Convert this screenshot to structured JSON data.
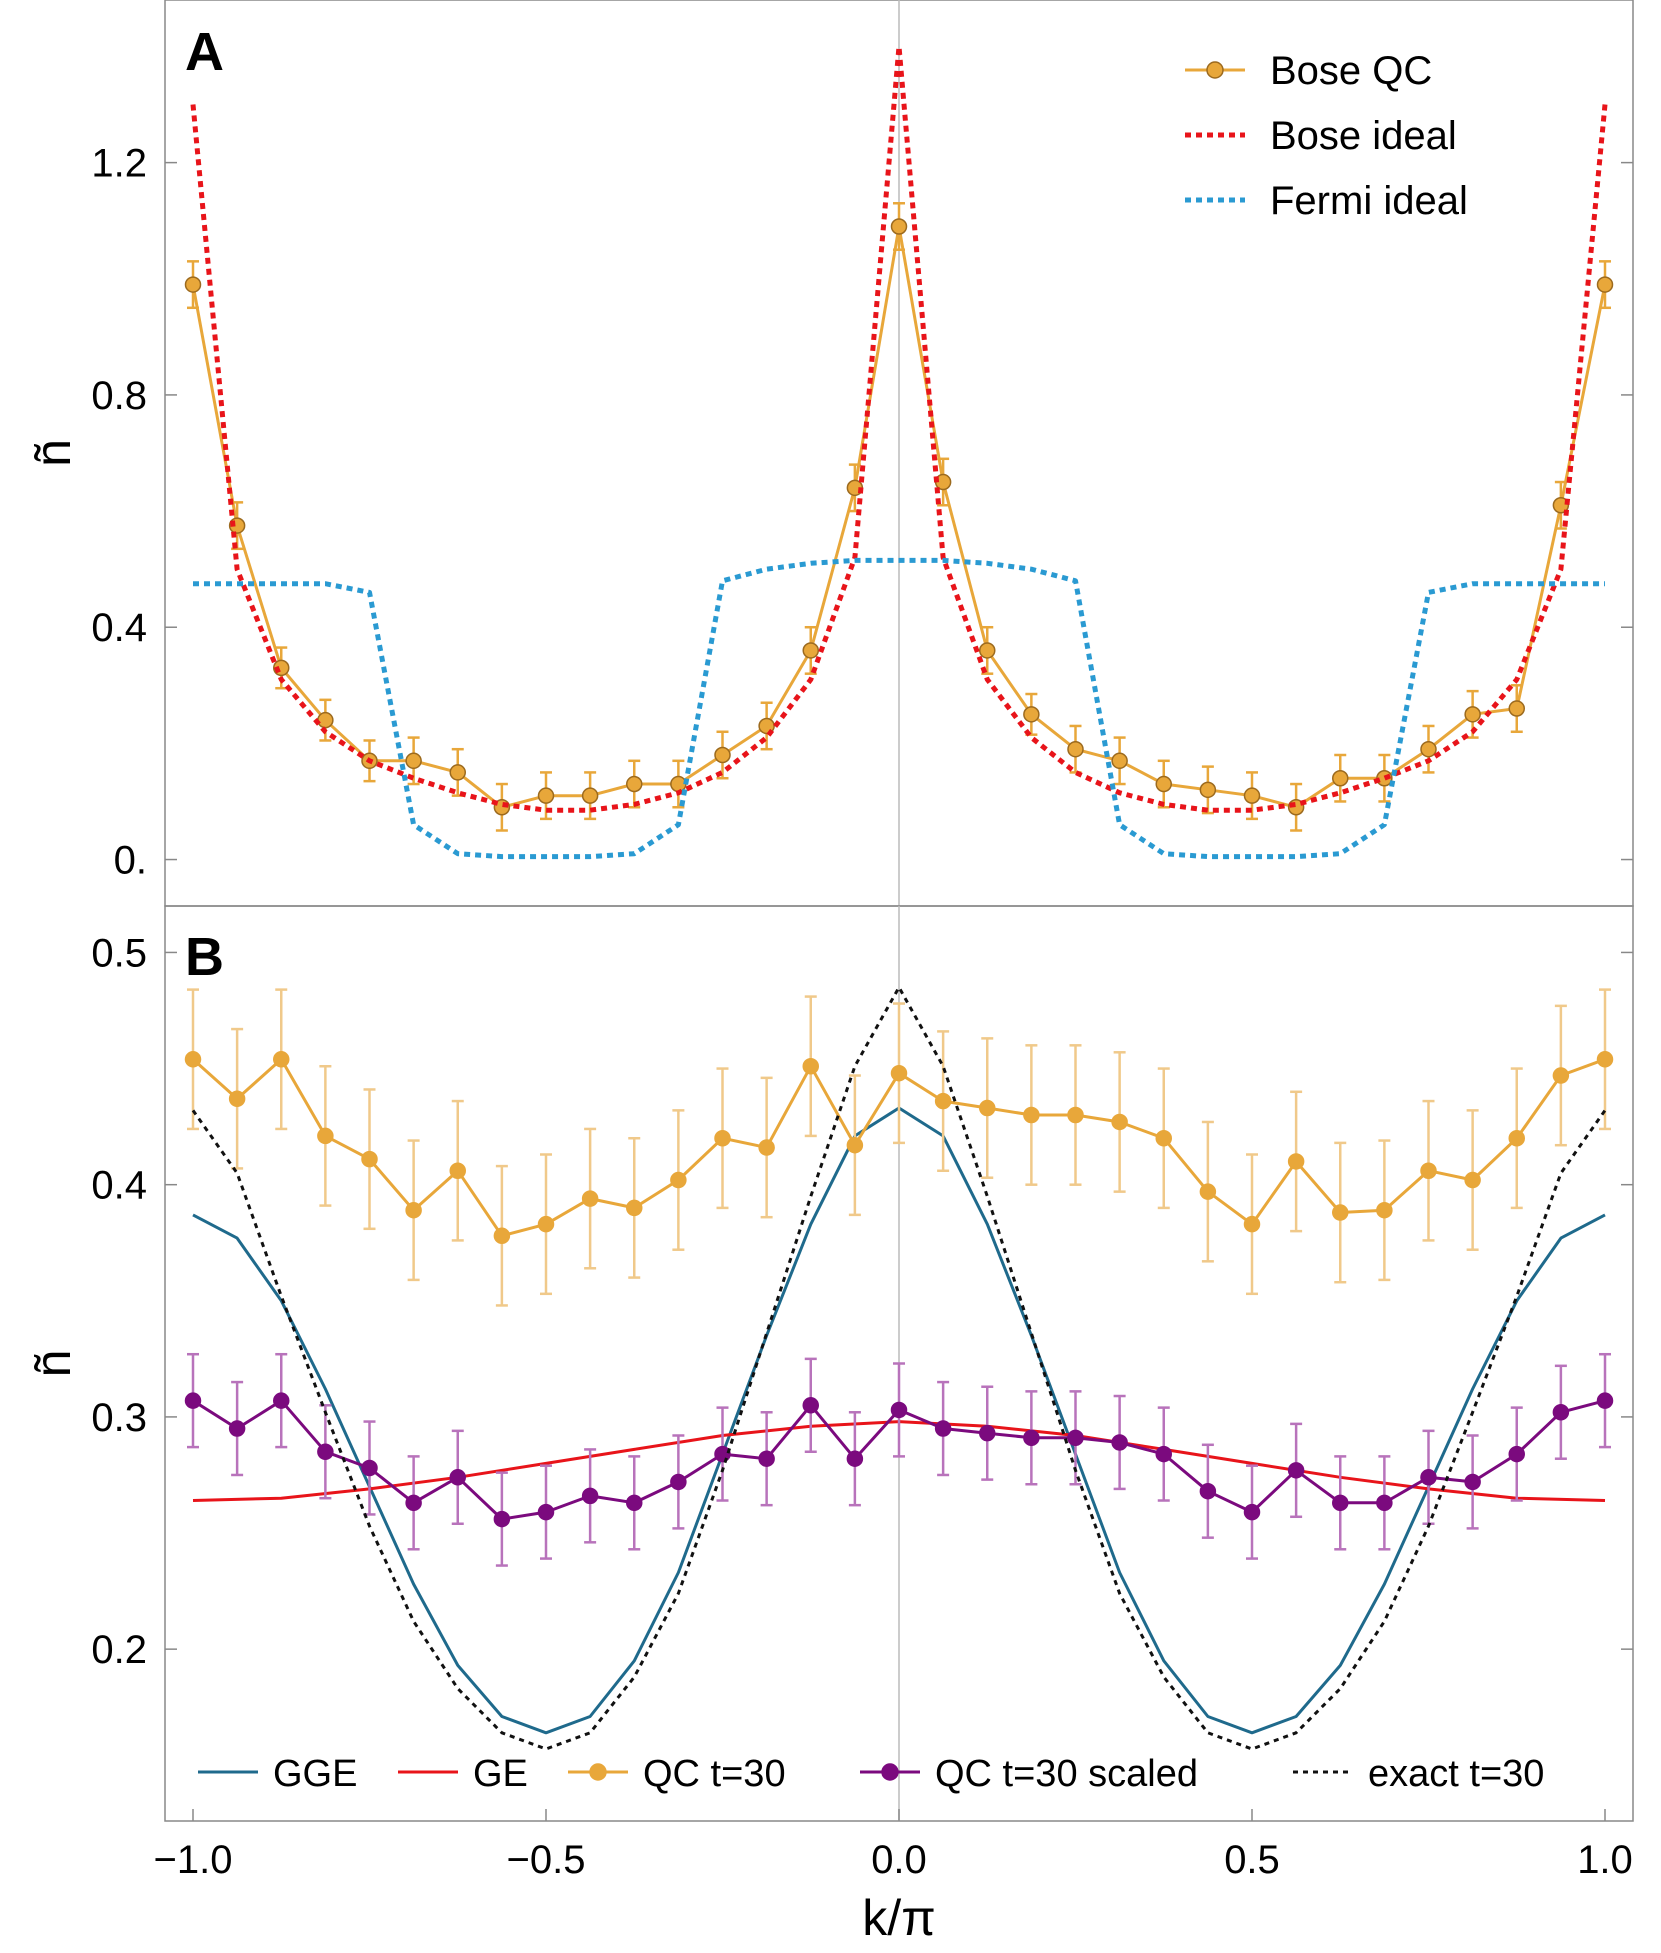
{
  "colors": {
    "bose_qc": "#E8A73A",
    "bose_qc_marker_stroke": "#9C6A1E",
    "bose_ideal": "#E8141A",
    "fermi_ideal": "#2A9AD2",
    "gge": "#1F6A8C",
    "ge": "#E8141A",
    "qc_scaled": "#7B0A7E",
    "exact": "#111111",
    "frame": "#888888",
    "zero_line": "#BBBBBB"
  },
  "chart_data": [
    {
      "panel": "A",
      "type": "line",
      "panel_label": "A",
      "xlabel": "k/π",
      "ylabel": "ñ",
      "xlim": [
        -1.0,
        1.0
      ],
      "ylim": [
        -0.08,
        1.48
      ],
      "yticks": [
        0.0,
        0.4,
        0.8,
        1.2
      ],
      "ytick_labels": [
        "0.",
        "0.4",
        "0.8",
        "1.2"
      ],
      "legend_position": "top-right",
      "legend": [
        "Bose QC",
        "Bose ideal",
        "Fermi ideal"
      ],
      "series": [
        {
          "name": "Bose QC",
          "style": "line-markers-errorbars",
          "x": [
            -1.0,
            -0.9375,
            -0.875,
            -0.8125,
            -0.75,
            -0.6875,
            -0.625,
            -0.5625,
            -0.5,
            -0.4375,
            -0.375,
            -0.3125,
            -0.25,
            -0.1875,
            -0.125,
            -0.0625,
            0.0,
            0.0625,
            0.125,
            0.1875,
            0.25,
            0.3125,
            0.375,
            0.4375,
            0.5,
            0.5625,
            0.625,
            0.6875,
            0.75,
            0.8125,
            0.875,
            0.9375,
            1.0
          ],
          "values": [
            0.99,
            0.575,
            0.33,
            0.24,
            0.17,
            0.17,
            0.15,
            0.09,
            0.11,
            0.11,
            0.13,
            0.13,
            0.18,
            0.23,
            0.36,
            0.64,
            1.09,
            0.65,
            0.36,
            0.25,
            0.19,
            0.17,
            0.13,
            0.12,
            0.11,
            0.09,
            0.14,
            0.14,
            0.19,
            0.25,
            0.26,
            0.61,
            0.99
          ],
          "errors": [
            0.04,
            0.04,
            0.035,
            0.035,
            0.035,
            0.04,
            0.04,
            0.04,
            0.04,
            0.04,
            0.04,
            0.04,
            0.04,
            0.04,
            0.04,
            0.04,
            0.04,
            0.04,
            0.04,
            0.035,
            0.04,
            0.04,
            0.04,
            0.04,
            0.04,
            0.04,
            0.04,
            0.04,
            0.04,
            0.04,
            0.04,
            0.04,
            0.04
          ]
        },
        {
          "name": "Bose ideal",
          "style": "dotted",
          "x": [
            -1.0,
            -0.9375,
            -0.875,
            -0.8125,
            -0.75,
            -0.6875,
            -0.625,
            -0.5625,
            -0.5,
            -0.4375,
            -0.375,
            -0.3125,
            -0.25,
            -0.1875,
            -0.125,
            -0.0625,
            0.0,
            0.0625,
            0.125,
            0.1875,
            0.25,
            0.3125,
            0.375,
            0.4375,
            0.5,
            0.5625,
            0.625,
            0.6875,
            0.75,
            0.8125,
            0.875,
            0.9375,
            1.0
          ],
          "values": [
            1.3,
            0.5,
            0.31,
            0.22,
            0.17,
            0.14,
            0.115,
            0.095,
            0.085,
            0.085,
            0.095,
            0.115,
            0.15,
            0.21,
            0.31,
            0.52,
            1.4,
            0.52,
            0.31,
            0.21,
            0.15,
            0.115,
            0.095,
            0.085,
            0.085,
            0.095,
            0.115,
            0.14,
            0.17,
            0.22,
            0.31,
            0.5,
            1.3
          ]
        },
        {
          "name": "Fermi ideal",
          "style": "dotted",
          "x": [
            -1.0,
            -0.9375,
            -0.875,
            -0.8125,
            -0.75,
            -0.6875,
            -0.625,
            -0.5625,
            -0.5,
            -0.4375,
            -0.375,
            -0.3125,
            -0.25,
            -0.1875,
            -0.125,
            -0.0625,
            0.0,
            0.0625,
            0.125,
            0.1875,
            0.25,
            0.3125,
            0.375,
            0.4375,
            0.5,
            0.5625,
            0.625,
            0.6875,
            0.75,
            0.8125,
            0.875,
            0.9375,
            1.0
          ],
          "values": [
            0.475,
            0.475,
            0.475,
            0.475,
            0.46,
            0.06,
            0.01,
            0.005,
            0.005,
            0.005,
            0.01,
            0.06,
            0.48,
            0.5,
            0.51,
            0.515,
            0.515,
            0.515,
            0.51,
            0.5,
            0.48,
            0.06,
            0.01,
            0.005,
            0.005,
            0.005,
            0.01,
            0.06,
            0.46,
            0.475,
            0.475,
            0.475,
            0.475
          ]
        }
      ]
    },
    {
      "panel": "B",
      "type": "line",
      "panel_label": "B",
      "xlabel": "k/π",
      "ylabel": "ñ",
      "xlim": [
        -1.0,
        1.0
      ],
      "ylim": [
        0.126,
        0.52
      ],
      "xticks": [
        -1.0,
        -0.5,
        0.0,
        0.5,
        1.0
      ],
      "xtick_labels": [
        "−1.0",
        "−0.5",
        "0.0",
        "0.5",
        "1.0"
      ],
      "yticks": [
        0.2,
        0.3,
        0.4,
        0.5
      ],
      "ytick_labels": [
        "0.2",
        "0.3",
        "0.4",
        "0.5"
      ],
      "legend_position": "bottom",
      "legend": [
        "GGE",
        "GE",
        "QC t=30",
        "QC t=30 scaled",
        "exact t=30"
      ],
      "series": [
        {
          "name": "GGE",
          "style": "solid",
          "x": [
            -1.0,
            -0.9375,
            -0.875,
            -0.8125,
            -0.75,
            -0.6875,
            -0.625,
            -0.5625,
            -0.5,
            -0.4375,
            -0.375,
            -0.3125,
            -0.25,
            -0.1875,
            -0.125,
            -0.0625,
            0.0,
            0.0625,
            0.125,
            0.1875,
            0.25,
            0.3125,
            0.375,
            0.4375,
            0.5,
            0.5625,
            0.625,
            0.6875,
            0.75,
            0.8125,
            0.875,
            0.9375,
            1.0
          ],
          "values": [
            0.387,
            0.377,
            0.35,
            0.312,
            0.27,
            0.228,
            0.193,
            0.171,
            0.164,
            0.171,
            0.195,
            0.233,
            0.284,
            0.335,
            0.383,
            0.421,
            0.433,
            0.421,
            0.383,
            0.335,
            0.284,
            0.233,
            0.195,
            0.171,
            0.164,
            0.171,
            0.193,
            0.228,
            0.27,
            0.312,
            0.35,
            0.377,
            0.387
          ]
        },
        {
          "name": "GE",
          "style": "solid",
          "x": [
            -1.0,
            -0.875,
            -0.75,
            -0.625,
            -0.5,
            -0.375,
            -0.25,
            -0.125,
            0.0,
            0.125,
            0.25,
            0.375,
            0.5,
            0.625,
            0.75,
            0.875,
            1.0
          ],
          "values": [
            0.264,
            0.265,
            0.269,
            0.274,
            0.28,
            0.286,
            0.292,
            0.296,
            0.298,
            0.296,
            0.292,
            0.286,
            0.28,
            0.274,
            0.269,
            0.265,
            0.264
          ]
        },
        {
          "name": "QC t=30",
          "style": "line-markers-errorbars",
          "x": [
            -1.0,
            -0.9375,
            -0.875,
            -0.8125,
            -0.75,
            -0.6875,
            -0.625,
            -0.5625,
            -0.5,
            -0.4375,
            -0.375,
            -0.3125,
            -0.25,
            -0.1875,
            -0.125,
            -0.0625,
            0.0,
            0.0625,
            0.125,
            0.1875,
            0.25,
            0.3125,
            0.375,
            0.4375,
            0.5,
            0.5625,
            0.625,
            0.6875,
            0.75,
            0.8125,
            0.875,
            0.9375,
            1.0
          ],
          "values": [
            0.454,
            0.437,
            0.454,
            0.421,
            0.411,
            0.389,
            0.406,
            0.378,
            0.383,
            0.394,
            0.39,
            0.402,
            0.42,
            0.416,
            0.451,
            0.417,
            0.448,
            0.436,
            0.433,
            0.43,
            0.43,
            0.427,
            0.42,
            0.397,
            0.383,
            0.41,
            0.388,
            0.389,
            0.406,
            0.402,
            0.42,
            0.447,
            0.454
          ],
          "errors": [
            0.03,
            0.03,
            0.03,
            0.03,
            0.03,
            0.03,
            0.03,
            0.03,
            0.03,
            0.03,
            0.03,
            0.03,
            0.03,
            0.03,
            0.03,
            0.03,
            0.03,
            0.03,
            0.03,
            0.03,
            0.03,
            0.03,
            0.03,
            0.03,
            0.03,
            0.03,
            0.03,
            0.03,
            0.03,
            0.03,
            0.03,
            0.03,
            0.03
          ]
        },
        {
          "name": "QC t=30 scaled",
          "style": "line-markers-errorbars",
          "x": [
            -1.0,
            -0.9375,
            -0.875,
            -0.8125,
            -0.75,
            -0.6875,
            -0.625,
            -0.5625,
            -0.5,
            -0.4375,
            -0.375,
            -0.3125,
            -0.25,
            -0.1875,
            -0.125,
            -0.0625,
            0.0,
            0.0625,
            0.125,
            0.1875,
            0.25,
            0.3125,
            0.375,
            0.4375,
            0.5,
            0.5625,
            0.625,
            0.6875,
            0.75,
            0.8125,
            0.875,
            0.9375,
            1.0
          ],
          "values": [
            0.307,
            0.295,
            0.307,
            0.285,
            0.278,
            0.263,
            0.274,
            0.256,
            0.259,
            0.266,
            0.263,
            0.272,
            0.284,
            0.282,
            0.305,
            0.282,
            0.303,
            0.295,
            0.293,
            0.291,
            0.291,
            0.289,
            0.284,
            0.268,
            0.259,
            0.277,
            0.263,
            0.263,
            0.274,
            0.272,
            0.284,
            0.302,
            0.307
          ],
          "errors": [
            0.02,
            0.02,
            0.02,
            0.02,
            0.02,
            0.02,
            0.02,
            0.02,
            0.02,
            0.02,
            0.02,
            0.02,
            0.02,
            0.02,
            0.02,
            0.02,
            0.02,
            0.02,
            0.02,
            0.02,
            0.02,
            0.02,
            0.02,
            0.02,
            0.02,
            0.02,
            0.02,
            0.02,
            0.02,
            0.02,
            0.02,
            0.02,
            0.02
          ]
        },
        {
          "name": "exact t=30",
          "style": "dotted",
          "x": [
            -1.0,
            -0.9375,
            -0.875,
            -0.8125,
            -0.75,
            -0.6875,
            -0.625,
            -0.5625,
            -0.5,
            -0.4375,
            -0.375,
            -0.3125,
            -0.25,
            -0.1875,
            -0.125,
            -0.0625,
            0.0,
            0.0625,
            0.125,
            0.1875,
            0.25,
            0.3125,
            0.375,
            0.4375,
            0.5,
            0.5625,
            0.625,
            0.6875,
            0.75,
            0.8125,
            0.875,
            0.9375,
            1.0
          ],
          "values": [
            0.432,
            0.405,
            0.352,
            0.302,
            0.253,
            0.212,
            0.183,
            0.164,
            0.157,
            0.164,
            0.188,
            0.224,
            0.277,
            0.336,
            0.395,
            0.451,
            0.485,
            0.451,
            0.395,
            0.336,
            0.277,
            0.224,
            0.188,
            0.164,
            0.157,
            0.164,
            0.183,
            0.212,
            0.253,
            0.302,
            0.352,
            0.405,
            0.432
          ]
        }
      ]
    }
  ]
}
